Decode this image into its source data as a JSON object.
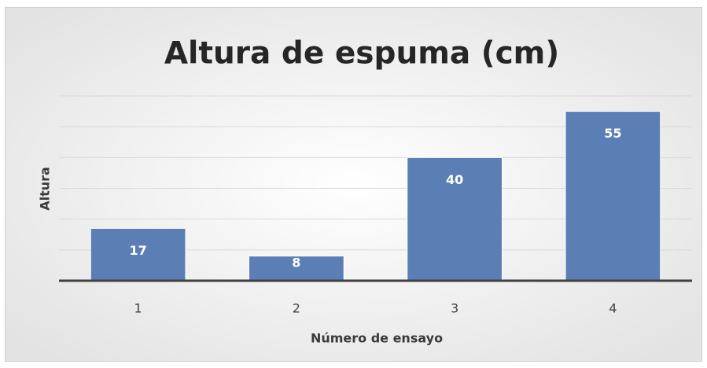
{
  "chart_data": {
    "type": "bar",
    "title": "Altura de espuma (cm)",
    "x_label": "Número de ensayo",
    "y_label": "Altura",
    "categories": [
      "1",
      "2",
      "3",
      "4"
    ],
    "values": [
      17,
      8,
      40,
      55
    ],
    "color": "#5b7fb4",
    "ylim": [
      0,
      60
    ],
    "yticks": [
      0,
      10,
      20,
      30,
      40,
      50,
      60
    ],
    "grid": true
  }
}
